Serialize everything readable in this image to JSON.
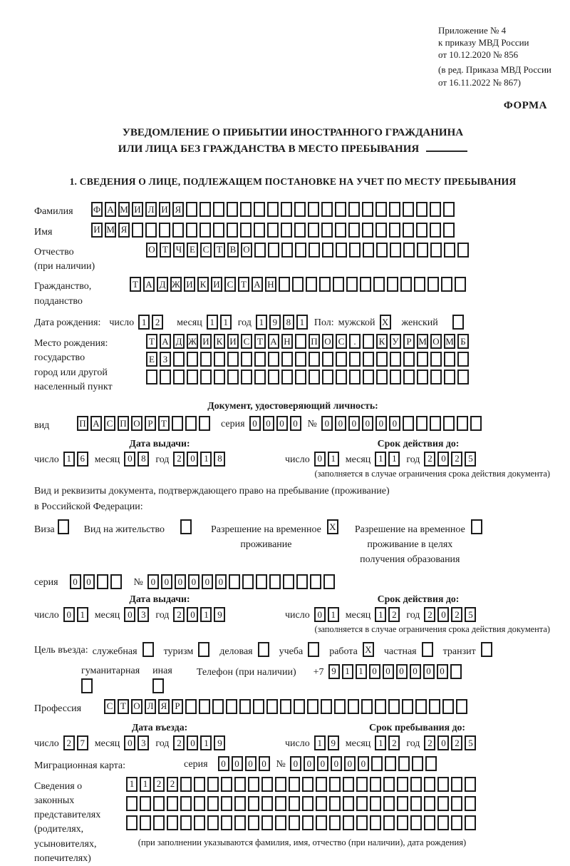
{
  "header": {
    "appendix_lines": [
      "Приложение № 4",
      "к приказу МВД России",
      "от 10.12.2020 № 856"
    ],
    "revision_lines": [
      "(в ред. Приказа МВД России",
      "от 16.11.2022 № 867)"
    ],
    "form_label": "ФОРМА"
  },
  "title": {
    "line1": "УВЕДОМЛЕНИЕ О ПРИБЫТИИ ИНОСТРАННОГО ГРАЖДАНИНА",
    "line2": "ИЛИ ЛИЦА БЕЗ ГРАЖДАНСТВА В МЕСТО ПРЕБЫВАНИЯ"
  },
  "section1_heading": "1. СВЕДЕНИЯ О ЛИЦЕ, ПОДЛЕЖАЩЕМ ПОСТАНОВКЕ НА УЧЕТ ПО МЕСТУ ПРЕБЫВАНИЯ",
  "person": {
    "surname": {
      "label": "Фамилия",
      "cells": {
        "value": "ФАМИЛИЯ",
        "length": 27
      }
    },
    "given_name": {
      "label": "Имя",
      "cells": {
        "value": "ИМЯ",
        "length": 27
      }
    },
    "patronymic": {
      "label1": "Отчество",
      "label2": "(при наличии)",
      "cells": {
        "value": "ОТЧЕСТВО",
        "length": 24
      }
    },
    "citizenship": {
      "label1": "Гражданство,",
      "label2": "подданство",
      "cells": {
        "value": "ТАДЖИКИСТАН",
        "length": 25
      }
    },
    "birth_date": {
      "label": "Дата рождения:",
      "day_label": "число",
      "day": {
        "value": "12",
        "length": 2
      },
      "month_label": "месяц",
      "month": {
        "value": "11",
        "length": 2
      },
      "year_label": "год",
      "year": {
        "value": "1981",
        "length": 4
      }
    },
    "sex": {
      "label": "Пол:",
      "male_label": "мужской",
      "male": {
        "value": "X",
        "length": 1
      },
      "female_label": "женский",
      "female": {
        "value": "",
        "length": 1
      }
    },
    "birth_place": {
      "label1": "Место рождения:",
      "label2": "государство",
      "label3": "город или другой",
      "label4": "населенный пункт",
      "row1": {
        "value": "ТАДЖИКИСТАН ПОС. КУРМОМБ",
        "length": 24
      },
      "row2": {
        "value": "ЕЗ",
        "length": 24
      },
      "row3": {
        "value": "",
        "length": 24
      }
    }
  },
  "identity_doc": {
    "heading": "Документ, удостоверяющий личность:",
    "kind_label": "вид",
    "kind": {
      "value": "ПАСПОРТ",
      "length": 10
    },
    "series_label": "серия",
    "series": {
      "value": "0000",
      "length": 4
    },
    "number_label": "№",
    "number": {
      "value": "000000",
      "length": 12
    },
    "issue_heading": "Дата выдачи:",
    "issue": {
      "day_label": "число",
      "day": {
        "value": "16",
        "length": 2
      },
      "month_label": "месяц",
      "month": {
        "value": "08",
        "length": 2
      },
      "year_label": "год",
      "year": {
        "value": "2018",
        "length": 4
      }
    },
    "expiry_heading": "Срок действия до:",
    "expiry": {
      "day_label": "число",
      "day": {
        "value": "01",
        "length": 2
      },
      "month_label": "месяц",
      "month": {
        "value": "11",
        "length": 2
      },
      "year_label": "год",
      "year": {
        "value": "2025",
        "length": 4
      }
    },
    "note": "(заполняется в случае ограничения срока действия документа)"
  },
  "residence_doc": {
    "intro_line1": "Вид и реквизиты документа, подтверждающего право на пребывание (проживание)",
    "intro_line2": "в Российской Федерации:",
    "visa_label": "Виза",
    "visa": {
      "value": "",
      "length": 1
    },
    "residence_permit_label": "Вид на жительство",
    "residence_permit": {
      "value": "",
      "length": 1
    },
    "temp_permit_label1": "Разрешение на временное",
    "temp_permit_label2": "проживание",
    "temp_permit": {
      "value": "X",
      "length": 1
    },
    "edu_permit_label1": "Разрешение на временное",
    "edu_permit_label2": "проживание в целях",
    "edu_permit_label3": "получения образования",
    "edu_permit": {
      "value": "",
      "length": 1
    },
    "series_label": "серия",
    "series": {
      "value": "00",
      "length": 4
    },
    "number_label": "№",
    "number": {
      "value": "000000",
      "length": 14
    },
    "issue_heading": "Дата выдачи:",
    "issue": {
      "day_label": "число",
      "day": {
        "value": "01",
        "length": 2
      },
      "month_label": "месяц",
      "month": {
        "value": "03",
        "length": 2
      },
      "year_label": "год",
      "year": {
        "value": "2019",
        "length": 4
      }
    },
    "expiry_heading": "Срок действия до:",
    "expiry": {
      "day_label": "число",
      "day": {
        "value": "01",
        "length": 2
      },
      "month_label": "месяц",
      "month": {
        "value": "12",
        "length": 2
      },
      "year_label": "год",
      "year": {
        "value": "2025",
        "length": 4
      }
    },
    "note": "(заполняется в случае ограничения срока действия документа)"
  },
  "purpose": {
    "label": "Цель въезда:",
    "options": [
      {
        "label": "служебная",
        "cells": {
          "value": "",
          "length": 1
        }
      },
      {
        "label": "туризм",
        "cells": {
          "value": "",
          "length": 1
        }
      },
      {
        "label": "деловая",
        "cells": {
          "value": "",
          "length": 1
        }
      },
      {
        "label": "учеба",
        "cells": {
          "value": "",
          "length": 1
        }
      },
      {
        "label": "работа",
        "cells": {
          "value": "X",
          "length": 1
        }
      },
      {
        "label": "частная",
        "cells": {
          "value": "",
          "length": 1
        }
      },
      {
        "label": "транзит",
        "cells": {
          "value": "",
          "length": 1
        }
      }
    ],
    "options2": [
      {
        "label": "гуманитарная",
        "cells": {
          "value": "",
          "length": 1
        }
      },
      {
        "label": "иная",
        "cells": {
          "value": "",
          "length": 1
        }
      }
    ],
    "phone_label": "Телефон (при наличии)",
    "phone_prefix": "+7",
    "phone": {
      "value": "911000000",
      "length": 10
    }
  },
  "profession": {
    "label": "Профессия",
    "cells": {
      "value": "СТОЛЯР",
      "length": 27
    }
  },
  "entry": {
    "date_heading": "Дата въезда:",
    "date": {
      "day_label": "число",
      "day": {
        "value": "27",
        "length": 2
      },
      "month_label": "месяц",
      "month": {
        "value": "03",
        "length": 2
      },
      "year_label": "год",
      "year": {
        "value": "2019",
        "length": 4
      }
    },
    "stay_heading": "Срок пребывания до:",
    "stay": {
      "day_label": "число",
      "day": {
        "value": "19",
        "length": 2
      },
      "month_label": "месяц",
      "month": {
        "value": "12",
        "length": 2
      },
      "year_label": "год",
      "year": {
        "value": "2025",
        "length": 4
      }
    }
  },
  "migration_card": {
    "label": "Миграционная карта:",
    "series_label": "серия",
    "series": {
      "value": "0000",
      "length": 4
    },
    "number_label": "№",
    "number": {
      "value": "000000",
      "length": 11
    }
  },
  "representatives": {
    "label_lines": [
      "Сведения о",
      "законных",
      "представителях",
      "(родителях,",
      "усыновителях,",
      "попечителях)"
    ],
    "row1": {
      "value": "1122",
      "length": 26
    },
    "row2": {
      "value": "",
      "length": 26
    },
    "row3": {
      "value": "",
      "length": 26
    },
    "note": "(при заполнении указываются фамилия, имя, отчество (при наличии), дата рождения)"
  }
}
